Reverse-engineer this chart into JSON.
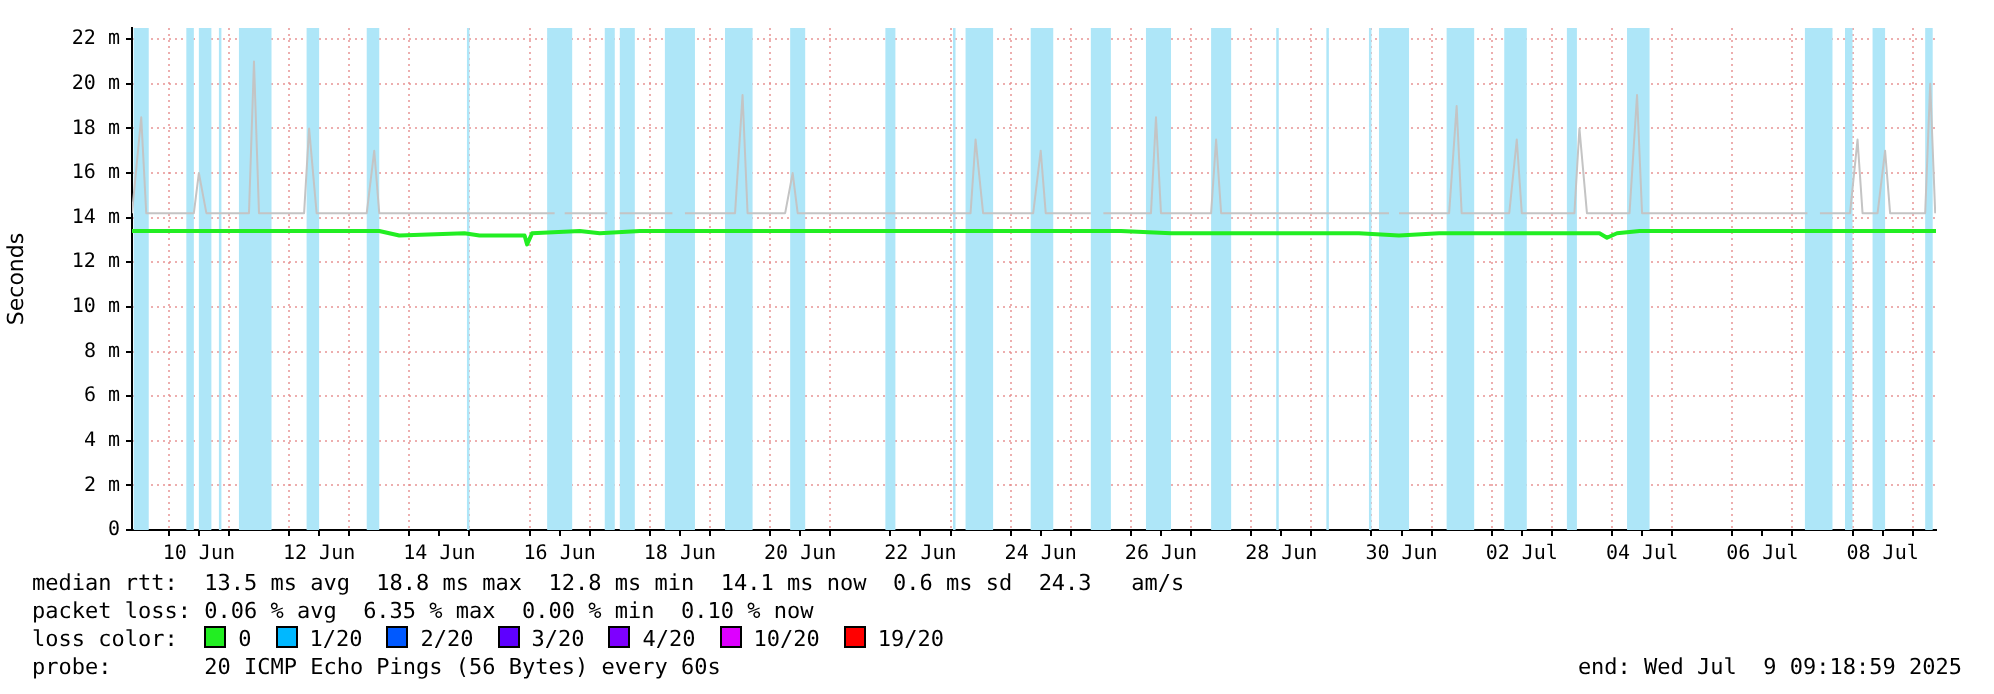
{
  "chart_data": {
    "type": "line",
    "ylabel": "Seconds",
    "legend_title": "loss color:",
    "legend": "bottom",
    "grid": true,
    "xlim": [
      "2025-06-09T09:19",
      "2025-07-09T09:19"
    ],
    "ylim": [
      0,
      22.5
    ],
    "yticks": [
      0,
      {
        "value": 2,
        "label": "2 m"
      },
      {
        "value": 4,
        "label": "4 m"
      },
      {
        "value": 6,
        "label": "6 m"
      },
      {
        "value": 8,
        "label": "8 m"
      },
      {
        "value": 10,
        "label": "10 m"
      },
      {
        "value": 12,
        "label": "12 m"
      },
      {
        "value": 14,
        "label": "14 m"
      },
      {
        "value": 16,
        "label": "16 m"
      },
      {
        "value": 18,
        "label": "18 m"
      },
      {
        "value": 20,
        "label": "20 m"
      },
      {
        "value": 22,
        "label": "22 m"
      }
    ],
    "xticks": [
      {
        "value": "2025-06-10",
        "label": null
      },
      {
        "value": "2025-06-11",
        "label": null
      },
      {
        "value": "2025-06-12",
        "label": null
      },
      {
        "value": "2025-06-13",
        "label": null
      },
      {
        "value": "2025-06-14",
        "label": null
      },
      {
        "value": "2025-06-15",
        "label": null
      },
      {
        "value": "2025-06-16",
        "label": null
      },
      {
        "value": "2025-06-17",
        "label": null
      },
      {
        "value": "2025-06-18",
        "label": null
      },
      {
        "value": "2025-06-19",
        "label": null
      },
      {
        "value": "2025-06-20",
        "label": null
      },
      {
        "value": "2025-06-21",
        "label": null
      },
      {
        "value": "2025-06-22",
        "label": null
      },
      {
        "value": "2025-06-23",
        "label": null
      },
      {
        "value": "2025-06-24",
        "label": null
      },
      {
        "value": "2025-06-25",
        "label": null
      },
      {
        "value": "2025-06-26",
        "label": null
      },
      {
        "value": "2025-06-27",
        "label": null
      },
      {
        "value": "2025-06-28",
        "label": null
      },
      {
        "value": "2025-06-29",
        "label": null
      },
      {
        "value": "2025-06-30",
        "label": null
      },
      {
        "value": "2025-07-01",
        "label": null
      },
      {
        "value": "2025-07-02",
        "label": null
      },
      {
        "value": "2025-07-03",
        "label": null
      },
      {
        "value": "2025-07-04",
        "label": null
      },
      {
        "value": "2025-07-05",
        "label": null
      },
      {
        "value": "2025-07-06",
        "label": null
      },
      {
        "value": "2025-07-07",
        "label": null
      },
      {
        "value": "2025-07-08",
        "label": null
      },
      {
        "value": "2025-07-09",
        "label": null
      },
      {
        "value": "2025-06-10T12:00",
        "label": "10 Jun"
      },
      {
        "value": "2025-06-12T12:00",
        "label": "12 Jun"
      },
      {
        "value": "2025-06-14T12:00",
        "label": "14 Jun"
      },
      {
        "value": "2025-06-16T12:00",
        "label": "16 Jun"
      },
      {
        "value": "2025-06-18T12:00",
        "label": "18 Jun"
      },
      {
        "value": "2025-06-20T12:00",
        "label": "20 Jun"
      },
      {
        "value": "2025-06-22T12:00",
        "label": "22 Jun"
      },
      {
        "value": "2025-06-24T12:00",
        "label": "24 Jun"
      },
      {
        "value": "2025-06-26T12:00",
        "label": "26 Jun"
      },
      {
        "value": "2025-06-28T12:00",
        "label": "28 Jun"
      },
      {
        "value": "2025-06-30T12:00",
        "label": "30 Jun"
      },
      {
        "value": "2025-07-02T12:00",
        "label": "02 Jul"
      },
      {
        "value": "2025-07-04T12:00",
        "label": "04 Jul"
      },
      {
        "value": "2025-07-06T12:00",
        "label": "06 Jul"
      },
      {
        "value": "2025-07-08T12:00",
        "label": "08 Jul"
      }
    ],
    "series": [
      {
        "color": "#c4c4c4",
        "x": [
          "2025-06-09T09:19",
          "2025-06-09T10:00",
          "2025-06-09T13:00",
          "2025-06-09T15:00",
          "2025-06-10T10:00",
          "2025-06-10T12:00",
          "2025-06-10T15:00",
          "2025-06-11T08:00",
          "2025-06-11T10:00",
          "2025-06-11T12:00",
          "2025-06-12T06:00",
          "2025-06-12T08:00",
          "2025-06-12T11:00",
          "2025-06-13T07:00",
          "2025-06-13T10:00",
          "2025-06-13T12:00",
          "2025-06-16T10:00",
          "2025-06-16T12:00",
          "2025-06-16T14:00",
          "2025-06-17T07:00",
          "2025-06-17T10:00",
          "2025-06-17T12:00",
          "2025-06-18T09:00",
          "2025-06-18T11:00",
          "2025-06-18T14:00",
          "2025-06-19T10:00",
          "2025-06-19T13:00",
          "2025-06-19T15:00",
          "2025-06-20T06:00",
          "2025-06-20T09:00",
          "2025-06-20T11:00",
          "2025-06-23T08:00",
          "2025-06-23T10:00",
          "2025-06-23T13:00",
          "2025-06-24T09:00",
          "2025-06-24T12:00",
          "2025-06-24T14:00",
          "2025-06-25T08:00",
          "2025-06-25T11:00",
          "2025-06-25T13:00",
          "2025-06-26T08:00",
          "2025-06-26T10:00",
          "2025-06-26T12:00",
          "2025-06-27T08:00",
          "2025-06-27T10:00",
          "2025-06-27T12:00",
          "2025-06-30T07:00",
          "2025-06-30T09:00",
          "2025-06-30T11:00",
          "2025-07-01T07:00",
          "2025-07-01T10:00",
          "2025-07-01T12:00",
          "2025-07-02T07:00",
          "2025-07-02T10:00",
          "2025-07-02T12:00",
          "2025-07-03T09:00",
          "2025-07-03T11:00",
          "2025-07-03T14:00",
          "2025-07-04T07:00",
          "2025-07-04T10:00",
          "2025-07-04T12:00",
          "2025-07-07T06:00",
          "2025-07-07T09:00",
          "2025-07-07T11:00",
          "2025-07-07T23:00",
          "2025-07-08T02:00",
          "2025-07-08T04:00",
          "2025-07-08T10:00",
          "2025-07-08T13:00",
          "2025-07-08T15:00",
          "2025-07-09T05:00",
          "2025-07-09T07:00",
          "2025-07-09T09:00"
        ],
        "values": [
          14.2,
          14.2,
          18.5,
          14.2,
          14.2,
          16,
          14.2,
          14.2,
          21,
          14.2,
          14.2,
          18,
          14.2,
          14.2,
          17,
          14.2,
          14.2,
          null,
          14.2,
          14.2,
          null,
          14.2,
          14.2,
          null,
          14.2,
          14.2,
          19.5,
          14.2,
          14.2,
          16,
          14.2,
          14.2,
          17.5,
          14.2,
          14.2,
          17,
          14.2,
          14.2,
          null,
          14.2,
          14.2,
          18.5,
          14.2,
          14.2,
          17.5,
          14.2,
          14.2,
          null,
          14.2,
          14.2,
          19,
          14.2,
          14.2,
          17.5,
          14.2,
          14.2,
          18,
          14.2,
          14.2,
          19.5,
          14.2,
          14.2,
          null,
          14.2,
          14.2,
          17.5,
          14.2,
          14.2,
          17,
          14.2,
          14.2,
          20,
          14.2
        ]
      },
      {
        "name": "0",
        "color": "#22ee22",
        "x": [
          "2025-06-09T09:19",
          "2025-06-10T12:00",
          "2025-06-11T12:00",
          "2025-06-13T00:00",
          "2025-06-13T12:00",
          "2025-06-13T20:00",
          "2025-06-14T22:00",
          "2025-06-15T04:00",
          "2025-06-15T22:00",
          "2025-06-15T23:00",
          "2025-06-16T01:00",
          "2025-06-16T20:00",
          "2025-06-17T04:00",
          "2025-06-17T20:00",
          "2025-06-19T20:00",
          "2025-06-21T04:00",
          "2025-06-25T20:00",
          "2025-06-26T16:00",
          "2025-06-28T11:00",
          "2025-06-29T19:00",
          "2025-06-30T11:00",
          "2025-07-01T03:00",
          "2025-07-03T19:00",
          "2025-07-03T22:00",
          "2025-07-04T02:00",
          "2025-07-04T11:00",
          "2025-07-07T03:00",
          "2025-07-09T09:19"
        ],
        "values": [
          13.4,
          13.4,
          13.4,
          13.4,
          13.4,
          13.2,
          13.3,
          13.2,
          13.2,
          12.8,
          13.3,
          13.4,
          13.3,
          13.4,
          13.4,
          13.4,
          13.4,
          13.3,
          13.3,
          13.3,
          13.2,
          13.3,
          13.3,
          13.1,
          13.3,
          13.4,
          13.4,
          13.4
        ]
      },
      {
        "name": "1/20",
        "color": "#00b8ff"
      },
      {
        "name": "2/20",
        "color": "#0059ff"
      },
      {
        "name": "3/20",
        "color": "#5e00ff"
      },
      {
        "name": "4/20",
        "color": "#7e00ff"
      },
      {
        "name": "10/20",
        "color": "#dd00ff"
      },
      {
        "name": "19/20",
        "color": "#ff0000"
      }
    ],
    "bands": [
      {
        "axis": "x",
        "from": "2025-06-09T10:00",
        "to": "2025-06-09T16:00",
        "color": "#aee6f8"
      },
      {
        "axis": "x",
        "from": "2025-06-10T07:00",
        "to": "2025-06-10T10:00",
        "color": "#aee6f8"
      },
      {
        "axis": "x",
        "from": "2025-06-10T12:00",
        "to": "2025-06-10T17:00",
        "color": "#aee6f8"
      },
      {
        "axis": "x",
        "from": "2025-06-10T20:00",
        "to": "2025-06-10T21:00",
        "color": "#aee6f8"
      },
      {
        "axis": "x",
        "from": "2025-06-11T04:00",
        "to": "2025-06-11T17:00",
        "color": "#aee6f8"
      },
      {
        "axis": "x",
        "from": "2025-06-12T07:00",
        "to": "2025-06-12T12:00",
        "color": "#aee6f8"
      },
      {
        "axis": "x",
        "from": "2025-06-13T07:00",
        "to": "2025-06-13T12:00",
        "color": "#aee6f8"
      },
      {
        "axis": "x",
        "from": "2025-06-14T23:00",
        "to": "2025-06-15T00:00",
        "color": "#aee6f8"
      },
      {
        "axis": "x",
        "from": "2025-06-16T07:00",
        "to": "2025-06-16T17:00",
        "color": "#aee6f8"
      },
      {
        "axis": "x",
        "from": "2025-06-17T06:00",
        "to": "2025-06-17T10:00",
        "color": "#aee6f8"
      },
      {
        "axis": "x",
        "from": "2025-06-17T12:00",
        "to": "2025-06-17T18:00",
        "color": "#aee6f8"
      },
      {
        "axis": "x",
        "from": "2025-06-18T06:00",
        "to": "2025-06-18T18:00",
        "color": "#aee6f8"
      },
      {
        "axis": "x",
        "from": "2025-06-19T06:00",
        "to": "2025-06-19T17:00",
        "color": "#aee6f8"
      },
      {
        "axis": "x",
        "from": "2025-06-20T08:00",
        "to": "2025-06-20T14:00",
        "color": "#aee6f8"
      },
      {
        "axis": "x",
        "from": "2025-06-21T22:00",
        "to": "2025-06-22T02:00",
        "color": "#aee6f8"
      },
      {
        "axis": "x",
        "from": "2025-06-23T01:00",
        "to": "2025-06-23T02:00",
        "color": "#aee6f8"
      },
      {
        "axis": "x",
        "from": "2025-06-23T06:00",
        "to": "2025-06-23T17:00",
        "color": "#aee6f8"
      },
      {
        "axis": "x",
        "from": "2025-06-24T08:00",
        "to": "2025-06-24T17:00",
        "color": "#aee6f8"
      },
      {
        "axis": "x",
        "from": "2025-06-25T08:00",
        "to": "2025-06-25T16:00",
        "color": "#aee6f8"
      },
      {
        "axis": "x",
        "from": "2025-06-26T06:00",
        "to": "2025-06-26T16:00",
        "color": "#aee6f8"
      },
      {
        "axis": "x",
        "from": "2025-06-27T08:00",
        "to": "2025-06-27T16:00",
        "color": "#aee6f8"
      },
      {
        "axis": "x",
        "from": "2025-06-28T10:00",
        "to": "2025-06-28T11:00",
        "color": "#aee6f8"
      },
      {
        "axis": "x",
        "from": "2025-06-29T06:00",
        "to": "2025-06-29T07:00",
        "color": "#aee6f8"
      },
      {
        "axis": "x",
        "from": "2025-06-29T23:00",
        "to": "2025-06-30T00:00",
        "color": "#aee6f8"
      },
      {
        "axis": "x",
        "from": "2025-06-30T03:00",
        "to": "2025-06-30T15:00",
        "color": "#aee6f8"
      },
      {
        "axis": "x",
        "from": "2025-07-01T06:00",
        "to": "2025-07-01T17:00",
        "color": "#aee6f8"
      },
      {
        "axis": "x",
        "from": "2025-07-02T05:00",
        "to": "2025-07-02T14:00",
        "color": "#aee6f8"
      },
      {
        "axis": "x",
        "from": "2025-07-03T06:00",
        "to": "2025-07-03T10:00",
        "color": "#aee6f8"
      },
      {
        "axis": "x",
        "from": "2025-07-04T06:00",
        "to": "2025-07-04T15:00",
        "color": "#aee6f8"
      },
      {
        "axis": "x",
        "from": "2025-07-07T05:00",
        "to": "2025-07-07T16:00",
        "color": "#aee6f8"
      },
      {
        "axis": "x",
        "from": "2025-07-07T21:00",
        "to": "2025-07-08T00:00",
        "color": "#aee6f8"
      },
      {
        "axis": "x",
        "from": "2025-07-08T08:00",
        "to": "2025-07-08T13:00",
        "color": "#aee6f8"
      },
      {
        "axis": "x",
        "from": "2025-07-09T05:00",
        "to": "2025-07-09T08:00",
        "color": "#aee6f8"
      }
    ],
    "annotations": [
      "median rtt:  13.5 ms avg  18.8 ms max  12.8 ms min  14.1 ms now  0.6 ms sd  24.3   am/s",
      "packet loss: 0.06 % avg  6.35 % max  0.00 % min  0.10 % now",
      "probe:       20 ICMP Echo Pings (56 Bytes) every 60s",
      "end: Wed Jul  9 09:18:59 2025"
    ]
  }
}
